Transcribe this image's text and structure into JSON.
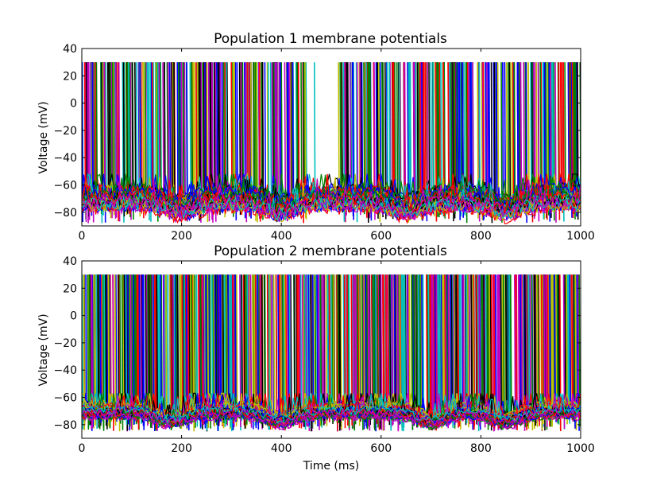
{
  "chart_data": [
    {
      "type": "line",
      "title": "Population 1 membrane potentials",
      "xlabel": "",
      "ylabel": "Voltage (mV)",
      "xlim": [
        0,
        1000
      ],
      "ylim": [
        -90,
        40
      ],
      "xticks": [
        "0",
        "200",
        "400",
        "600",
        "800",
        "1000"
      ],
      "yticks": [
        "40",
        "20",
        "0",
        "−20",
        "−40",
        "−60",
        "−80"
      ],
      "grid": false,
      "spike_peak_mv": 30,
      "resting_band_mv": [
        -88,
        -55
      ],
      "trough_times_ms": [
        200,
        400,
        650,
        850
      ],
      "quiet_interval_ms": [
        450,
        520
      ],
      "series_colors": [
        "#0000ff",
        "#008000",
        "#ff0000",
        "#00bfbf",
        "#bf00bf",
        "#bfbf00",
        "#000000"
      ]
    },
    {
      "type": "line",
      "title": "Population 2 membrane potentials",
      "xlabel": "Time (ms)",
      "ylabel": "Voltage (mV)",
      "xlim": [
        0,
        1000
      ],
      "ylim": [
        -90,
        40
      ],
      "xticks": [
        "0",
        "200",
        "400",
        "600",
        "800",
        "1000"
      ],
      "yticks": [
        "40",
        "20",
        "0",
        "−20",
        "−40",
        "−60",
        "−80"
      ],
      "grid": false,
      "spike_peak_mv": 30,
      "resting_band_mv": [
        -85,
        -60
      ],
      "trough_times_ms": [
        180,
        400,
        700,
        850
      ],
      "series_colors": [
        "#0000ff",
        "#008000",
        "#ff0000",
        "#00bfbf",
        "#bf00bf",
        "#bfbf00",
        "#000000"
      ]
    }
  ]
}
